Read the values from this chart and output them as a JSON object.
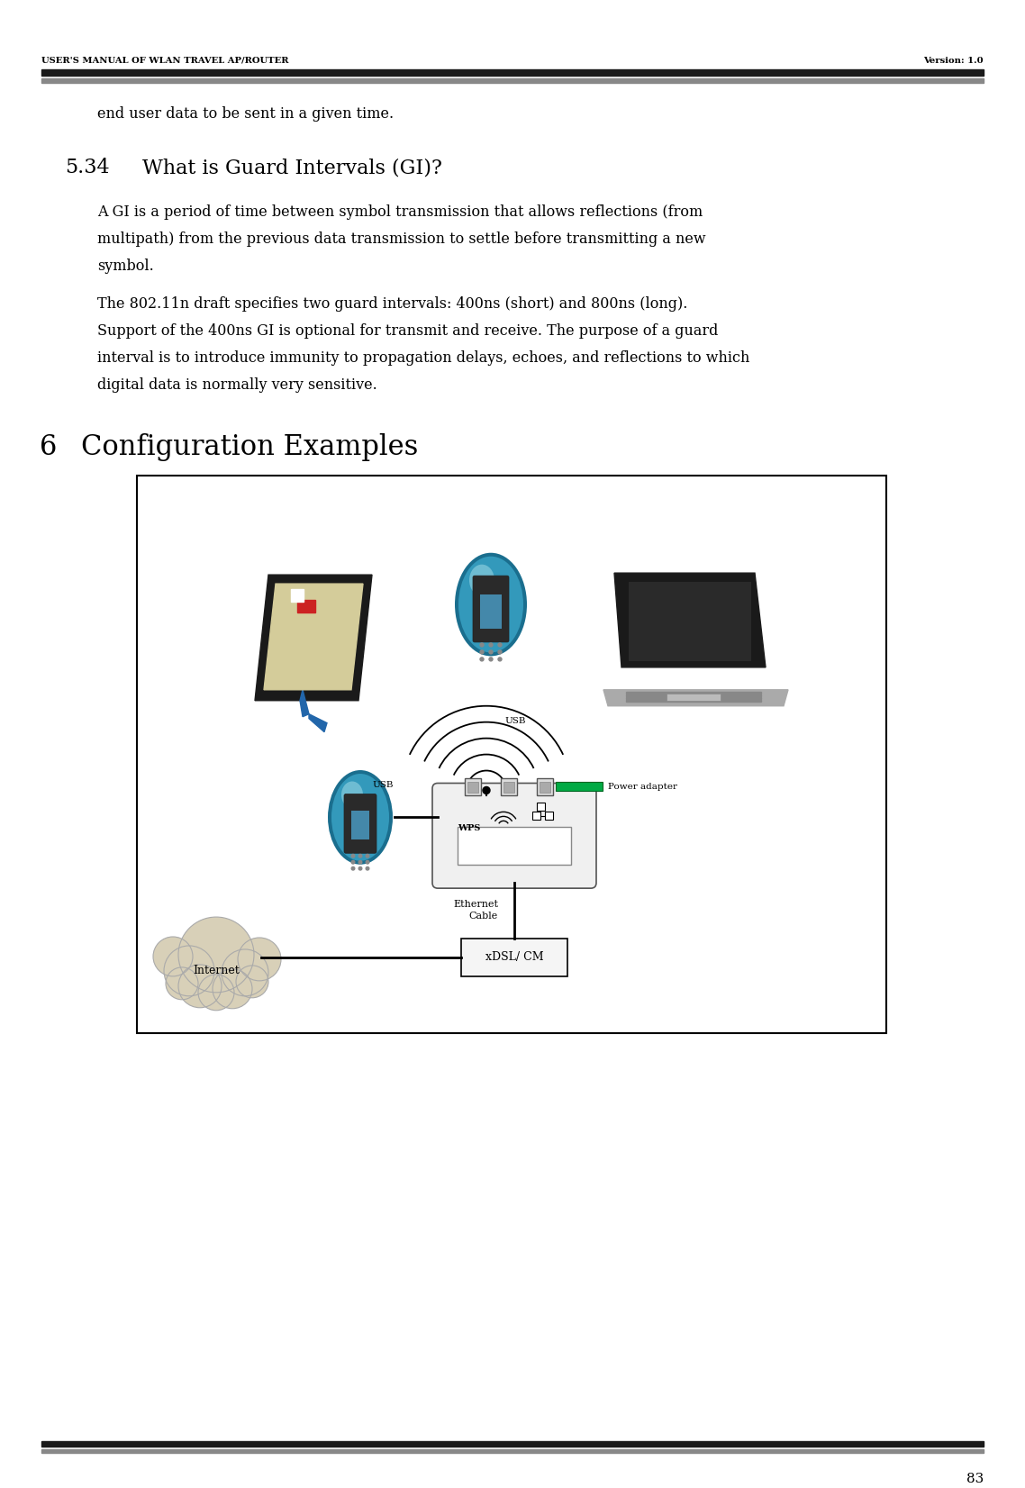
{
  "header_left": "USER'S MANUAL OF WLAN TRAVEL AP/ROUTER",
  "header_right": "Version: 1.0",
  "page_number": "83",
  "intro_text": "end user data to be sent in a given time.",
  "section_534": "5.34",
  "section_534_title": "What is Guard Intervals (GI)?",
  "para1_lines": [
    "A GI is a period of time between symbol transmission that allows reflections (from",
    "multipath) from the previous data transmission to settle before transmitting a new",
    "symbol."
  ],
  "para2_lines": [
    "The 802.11n draft specifies two guard intervals: 400ns (short) and 800ns (long).",
    "Support of the 400ns GI is optional for transmit and receive. The purpose of a guard",
    "interval is to introduce immunity to propagation delays, echoes, and reflections to which",
    "digital data is normally very sensitive."
  ],
  "section6": "6",
  "section6_title": "Configuration Examples",
  "bg_color": "#ffffff",
  "text_color": "#000000",
  "page_number_val": "83"
}
